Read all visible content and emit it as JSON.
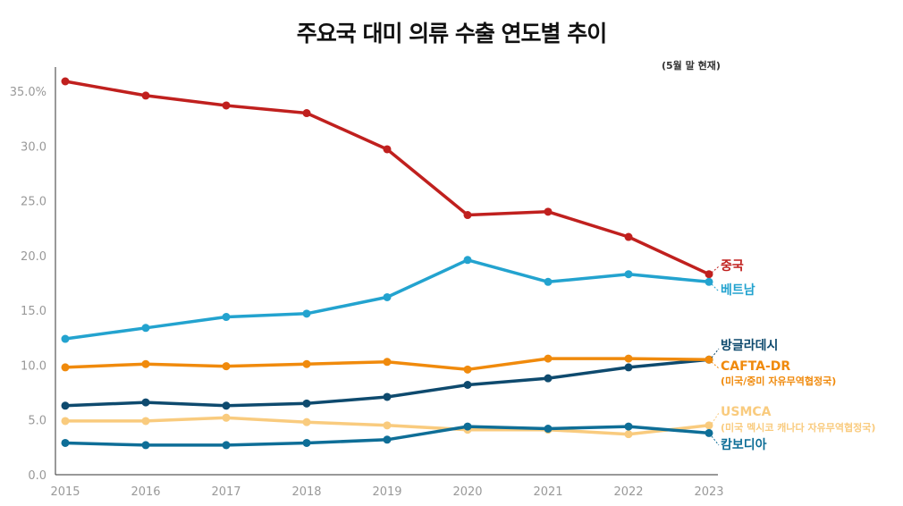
{
  "chart_data": {
    "type": "line",
    "title": "주요국 대미 의류 수출 연도별 추이",
    "subtitle": "(5월 말 현재)",
    "xlabel": "",
    "ylabel": "",
    "x": [
      "2015",
      "2016",
      "2017",
      "2018",
      "2019",
      "2020",
      "2021",
      "2022",
      "2023"
    ],
    "ylim": [
      0,
      37
    ],
    "yticks": [
      "0.0",
      "5.0",
      "10.0",
      "15.0",
      "20.0",
      "25.0",
      "30.0",
      "35.0%"
    ],
    "ytick_values": [
      0,
      5,
      10,
      15,
      20,
      25,
      30,
      35
    ],
    "grid": false,
    "legend": "direct labels at right end",
    "series": [
      {
        "name": "중국",
        "color": "#C0201E",
        "values": [
          35.9,
          34.6,
          33.7,
          33.0,
          29.7,
          23.7,
          24.0,
          21.7,
          18.3
        ]
      },
      {
        "name": "베트남",
        "color": "#23A3CF",
        "values": [
          12.4,
          13.4,
          14.4,
          14.7,
          16.2,
          19.6,
          17.6,
          18.3,
          17.6
        ]
      },
      {
        "name": "방글라데시",
        "color": "#0E4A6E",
        "values": [
          6.3,
          6.6,
          6.3,
          6.5,
          7.1,
          8.2,
          8.8,
          9.8,
          10.5
        ]
      },
      {
        "name": "CAFTA-DR",
        "sublabel": "(미국/중미 자유무역협정국)",
        "color": "#F08A0C",
        "values": [
          9.8,
          10.1,
          9.9,
          10.1,
          10.3,
          9.6,
          10.6,
          10.6,
          10.5
        ]
      },
      {
        "name": "USMCA",
        "sublabel": "(미국 멕시코 캐나다 자유무역협정국)",
        "color": "#F9CB7E",
        "values": [
          4.9,
          4.9,
          5.2,
          4.8,
          4.5,
          4.1,
          4.1,
          3.7,
          4.5
        ]
      },
      {
        "name": "캄보디아",
        "color": "#0E6E97",
        "values": [
          2.9,
          2.7,
          2.7,
          2.9,
          3.2,
          4.4,
          4.2,
          4.4,
          3.8
        ]
      }
    ]
  }
}
